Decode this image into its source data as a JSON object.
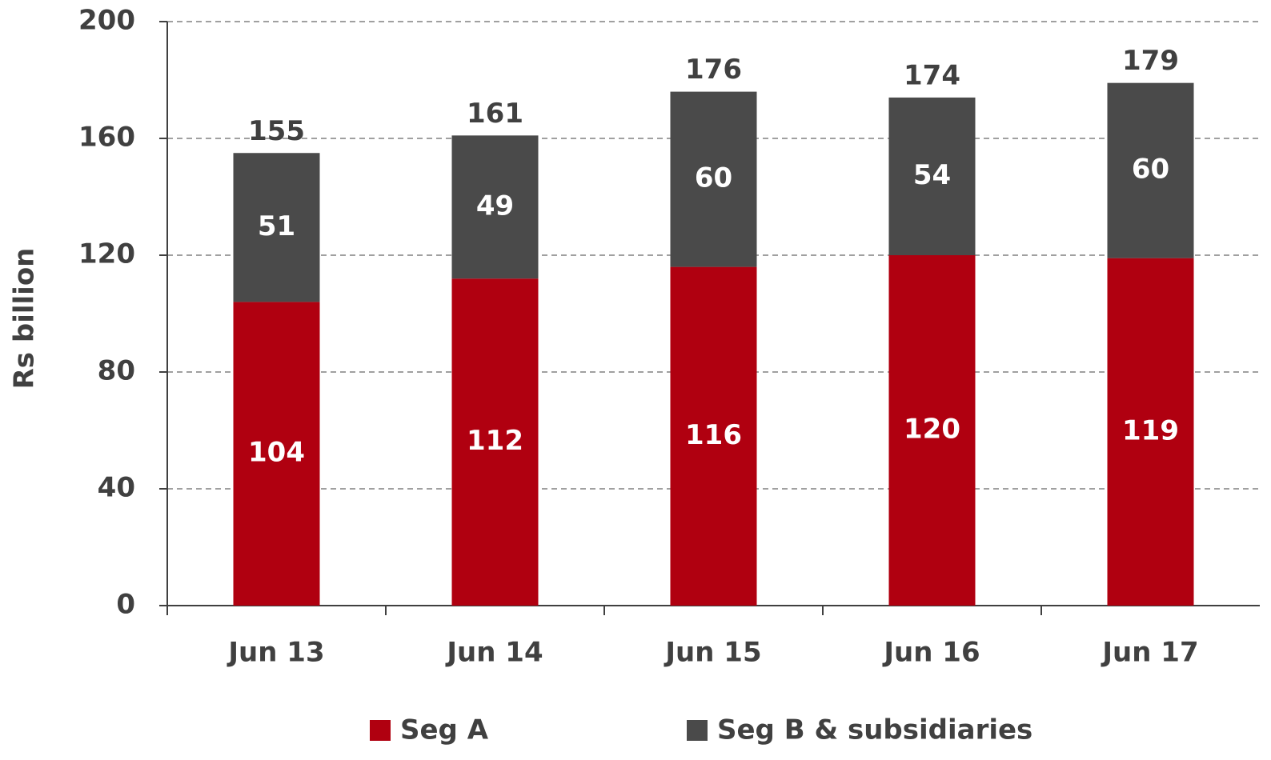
{
  "chart_data": {
    "type": "stacked_bar",
    "y_label": "Rs billion",
    "categories": [
      "Jun 13",
      "Jun 14",
      "Jun 15",
      "Jun 16",
      "Jun 17"
    ],
    "series": [
      {
        "name": "Seg A",
        "color": "#b00010",
        "values": [
          104,
          112,
          116,
          120,
          119
        ]
      },
      {
        "name": "Seg B & subsidiaries",
        "color": "#4a4a4a",
        "values": [
          51,
          49,
          60,
          54,
          60
        ]
      }
    ],
    "totals": [
      155,
      161,
      176,
      174,
      179
    ],
    "ylim": [
      0,
      200
    ],
    "yticks": [
      0,
      40,
      80,
      120,
      160,
      200
    ],
    "grid": true
  }
}
